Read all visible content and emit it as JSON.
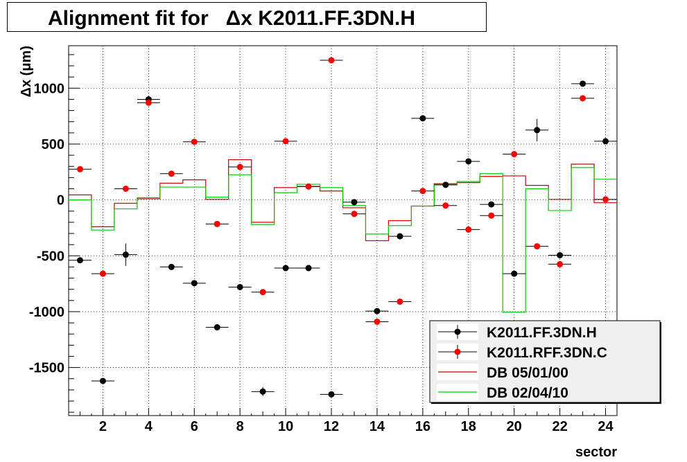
{
  "title": "Alignment fit for   Δx K2011.FF.3DN.H",
  "chart_data": {
    "type": "scatter",
    "xlabel": "sector",
    "ylabel": "Δx (μm)",
    "xlim": [
      0.5,
      24.5
    ],
    "ylim": [
      -1930,
      1380
    ],
    "x_ticks": [
      2,
      4,
      6,
      8,
      10,
      12,
      14,
      16,
      18,
      20,
      22,
      24
    ],
    "y_ticks": [
      -1500,
      -1000,
      -500,
      0,
      500,
      1000
    ],
    "grid": true,
    "legend_position": "bottom-right",
    "series": [
      {
        "name": "K2011.FF.3DN.H",
        "kind": "points",
        "color": "#000000",
        "x": [
          1,
          2,
          3,
          4,
          5,
          6,
          7,
          8,
          9,
          10,
          11,
          12,
          13,
          14,
          15,
          16,
          17,
          18,
          19,
          20,
          21,
          22,
          23,
          24
        ],
        "y": [
          -540,
          -1620,
          -490,
          900,
          -600,
          -745,
          -1140,
          -780,
          -1715,
          -610,
          -610,
          -1740,
          -20,
          -995,
          -325,
          730,
          135,
          345,
          -40,
          -660,
          625,
          -495,
          1040,
          525
        ],
        "yerr": [
          0,
          0,
          100,
          0,
          0,
          0,
          0,
          0,
          40,
          0,
          0,
          0,
          0,
          0,
          0,
          0,
          0,
          0,
          0,
          0,
          100,
          0,
          0,
          0
        ]
      },
      {
        "name": "K2011.RFF.3DN.C",
        "kind": "points",
        "color": "#ff0000",
        "x": [
          1,
          2,
          3,
          4,
          5,
          6,
          7,
          8,
          9,
          10,
          11,
          12,
          13,
          14,
          15,
          16,
          17,
          18,
          19,
          20,
          21,
          22,
          23,
          24
        ],
        "y": [
          275,
          -660,
          100,
          870,
          235,
          520,
          -215,
          295,
          -825,
          525,
          120,
          1250,
          -125,
          -1090,
          -910,
          80,
          -50,
          -265,
          -140,
          410,
          -415,
          -575,
          910,
          5
        ],
        "yerr": [
          0,
          0,
          0,
          0,
          0,
          0,
          0,
          0,
          0,
          0,
          0,
          0,
          0,
          0,
          0,
          0,
          0,
          0,
          0,
          0,
          0,
          0,
          0,
          0
        ]
      },
      {
        "name": "DB 05/01/00",
        "kind": "step",
        "color": "#cc0000",
        "x": [
          1,
          2,
          3,
          4,
          5,
          6,
          7,
          8,
          9,
          10,
          11,
          12,
          13,
          14,
          15,
          16,
          17,
          18,
          19,
          20,
          21,
          22,
          23,
          24
        ],
        "y": [
          45,
          -240,
          -30,
          10,
          150,
          180,
          5,
          360,
          -200,
          110,
          120,
          80,
          -70,
          -365,
          -185,
          -55,
          145,
          155,
          210,
          215,
          130,
          5,
          320,
          -25
        ]
      },
      {
        "name": "DB 02/04/10",
        "kind": "step",
        "color": "#00cc00",
        "x": [
          1,
          2,
          3,
          4,
          5,
          6,
          7,
          8,
          9,
          10,
          11,
          12,
          13,
          14,
          15,
          16,
          17,
          18,
          19,
          20,
          21,
          22,
          23,
          24
        ],
        "y": [
          0,
          -270,
          -80,
          20,
          115,
          115,
          25,
          225,
          -220,
          65,
          140,
          110,
          -50,
          -305,
          -230,
          -55,
          135,
          165,
          235,
          -1005,
          100,
          -95,
          290,
          185
        ]
      }
    ]
  }
}
